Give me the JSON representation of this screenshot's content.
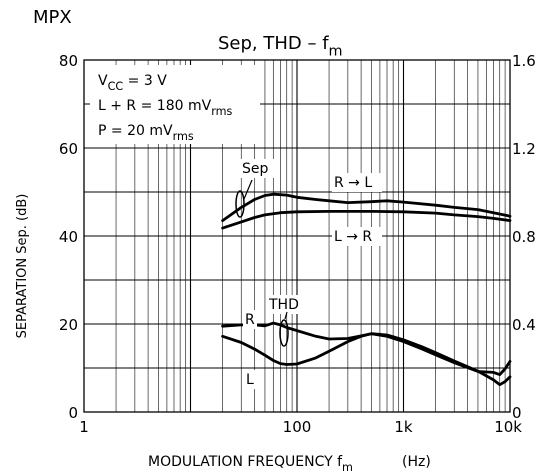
{
  "chart_data": {
    "type": "line",
    "header": "MPX",
    "title": {
      "main": "Sep, THD  –  f",
      "sub": "m"
    },
    "xlabel": {
      "main": "MODULATION FREQUENCY  f",
      "sub": "m",
      "unit": "(Hz)"
    },
    "ylabel_left": "SEPARATION   Sep.   (dB)",
    "x_scale": "log",
    "xlim": [
      1,
      10000
    ],
    "x_ticks": [
      {
        "value": 1,
        "label": "1"
      },
      {
        "value": 100,
        "label": "100"
      },
      {
        "value": 1000,
        "label": "1k"
      },
      {
        "value": 10000,
        "label": "10k"
      }
    ],
    "ylim_left": [
      0,
      80
    ],
    "y_ticks_left": [
      "0",
      "20",
      "40",
      "60",
      "80"
    ],
    "ylim_right": [
      0,
      1.6
    ],
    "y_ticks_right": [
      "0",
      "0.4",
      "0.8",
      "1.2",
      "1.6"
    ],
    "grid": true,
    "conditions": [
      {
        "main": "V",
        "sub": "CC",
        "rest": " = 3 V"
      },
      {
        "main": "L + R = 180 mV",
        "sub": "rms",
        "rest": ""
      },
      {
        "main": "P = 20 mV",
        "sub": "rms",
        "rest": ""
      }
    ],
    "group_labels": {
      "sep": "Sep",
      "thd": "THD"
    },
    "series": [
      {
        "name": "R → L",
        "group": "Sep",
        "x": [
          20,
          30,
          40,
          50,
          60,
          80,
          100,
          150,
          200,
          300,
          500,
          700,
          1000,
          2000,
          3000,
          5000,
          7000,
          10000
        ],
        "y": [
          43.5,
          46.5,
          48.3,
          49.2,
          49.5,
          49.3,
          48.8,
          48.3,
          48.0,
          47.6,
          47.8,
          48.0,
          47.7,
          47.0,
          46.5,
          46.0,
          45.3,
          44.5
        ]
      },
      {
        "name": "L → R",
        "group": "Sep",
        "x": [
          20,
          30,
          40,
          50,
          70,
          100,
          200,
          500,
          1000,
          2000,
          3000,
          5000,
          7000,
          10000
        ],
        "y": [
          41.8,
          43.2,
          44.2,
          44.8,
          45.3,
          45.5,
          45.6,
          45.6,
          45.5,
          45.2,
          44.8,
          44.4,
          44.0,
          43.5
        ]
      },
      {
        "name": "R",
        "group": "THD",
        "x": [
          20,
          30,
          40,
          50,
          60,
          70,
          80,
          100,
          150,
          200,
          300,
          400,
          500,
          700,
          1000,
          1500,
          2000,
          3000,
          5000,
          7000,
          8000,
          9000,
          10000
        ],
        "y": [
          19.5,
          19.8,
          19.8,
          19.6,
          20.2,
          19.8,
          19.2,
          18.5,
          17.2,
          16.6,
          16.7,
          17.3,
          17.8,
          17.2,
          16.0,
          14.3,
          13.0,
          11.2,
          9.2,
          9.0,
          8.5,
          9.8,
          11.5
        ]
      },
      {
        "name": "L",
        "group": "THD",
        "x": [
          20,
          30,
          40,
          50,
          60,
          70,
          80,
          100,
          150,
          200,
          300,
          400,
          500,
          700,
          1000,
          1500,
          2000,
          3000,
          5000,
          7000,
          8000,
          9000,
          10000
        ],
        "y": [
          17.2,
          15.8,
          14.3,
          12.9,
          11.7,
          11.0,
          10.8,
          10.9,
          12.3,
          13.8,
          16.0,
          17.2,
          17.8,
          17.5,
          16.4,
          14.8,
          13.5,
          11.6,
          9.3,
          7.3,
          6.2,
          6.9,
          8.0
        ]
      }
    ]
  }
}
